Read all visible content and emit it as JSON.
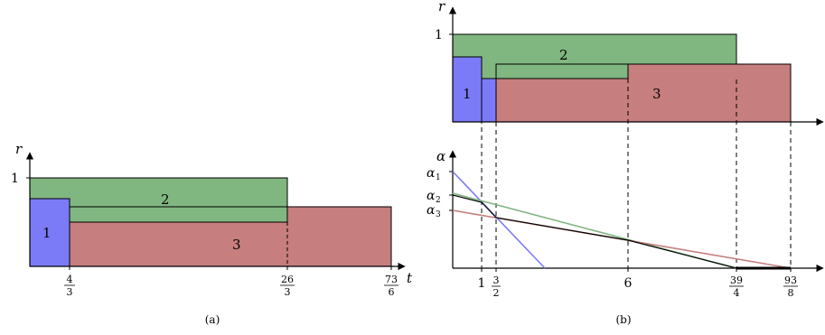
{
  "panel_a": {
    "caption": "(a)",
    "y_axis_label": "r",
    "x_axis_label": "t",
    "y_tick": "1",
    "x_ticks": [
      {
        "num": "4",
        "den": "3"
      },
      {
        "num": "26",
        "den": "3"
      },
      {
        "num": "73",
        "den": "6"
      }
    ],
    "regions": {
      "one": "1",
      "two": "2",
      "three": "3"
    }
  },
  "panel_b": {
    "caption": "(b)",
    "top": {
      "y_axis_label": "r",
      "y_tick": "1",
      "regions": {
        "one": "1",
        "two": "2",
        "three": "3"
      }
    },
    "bottom": {
      "y_axis_label": "α",
      "y_ticks": [
        {
          "base": "α",
          "sub": "1"
        },
        {
          "base": "α",
          "sub": "2"
        },
        {
          "base": "α",
          "sub": "3"
        }
      ],
      "x_ticks": {
        "one": "1",
        "three_halves": {
          "num": "3",
          "den": "2"
        },
        "six": "6",
        "thirtynine_quarters": {
          "num": "39",
          "den": "4"
        },
        "ninetythree_eighths": {
          "num": "93",
          "den": "8"
        }
      }
    }
  },
  "colors": {
    "blue": "#7b7bf7",
    "green": "#80b680",
    "red": "#c67e7e",
    "line_blue": "#7b7bf7",
    "line_green": "#80b680",
    "line_red": "#c67e7e"
  }
}
